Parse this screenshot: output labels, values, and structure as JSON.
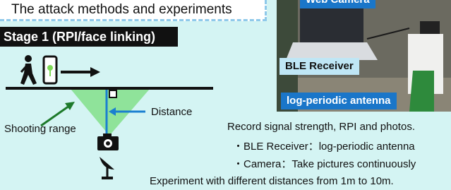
{
  "header": {
    "title": "The attack methods and experiments"
  },
  "diagram": {
    "stage": "Stage 1  (RPI/face linking)",
    "distance_label": "Distance",
    "shooting_range_label": "Shooting range"
  },
  "photo": {
    "labels": [
      "Web Camera",
      "BLE Receiver",
      "log-periodic antenna"
    ]
  },
  "notes": [
    "Record signal strength, RPI and photos.",
    "・BLE Receiver：log-periodic antenna",
    "・Camera：Take pictures continuously",
    "Experiment with different distances from 1m to 10m."
  ]
}
